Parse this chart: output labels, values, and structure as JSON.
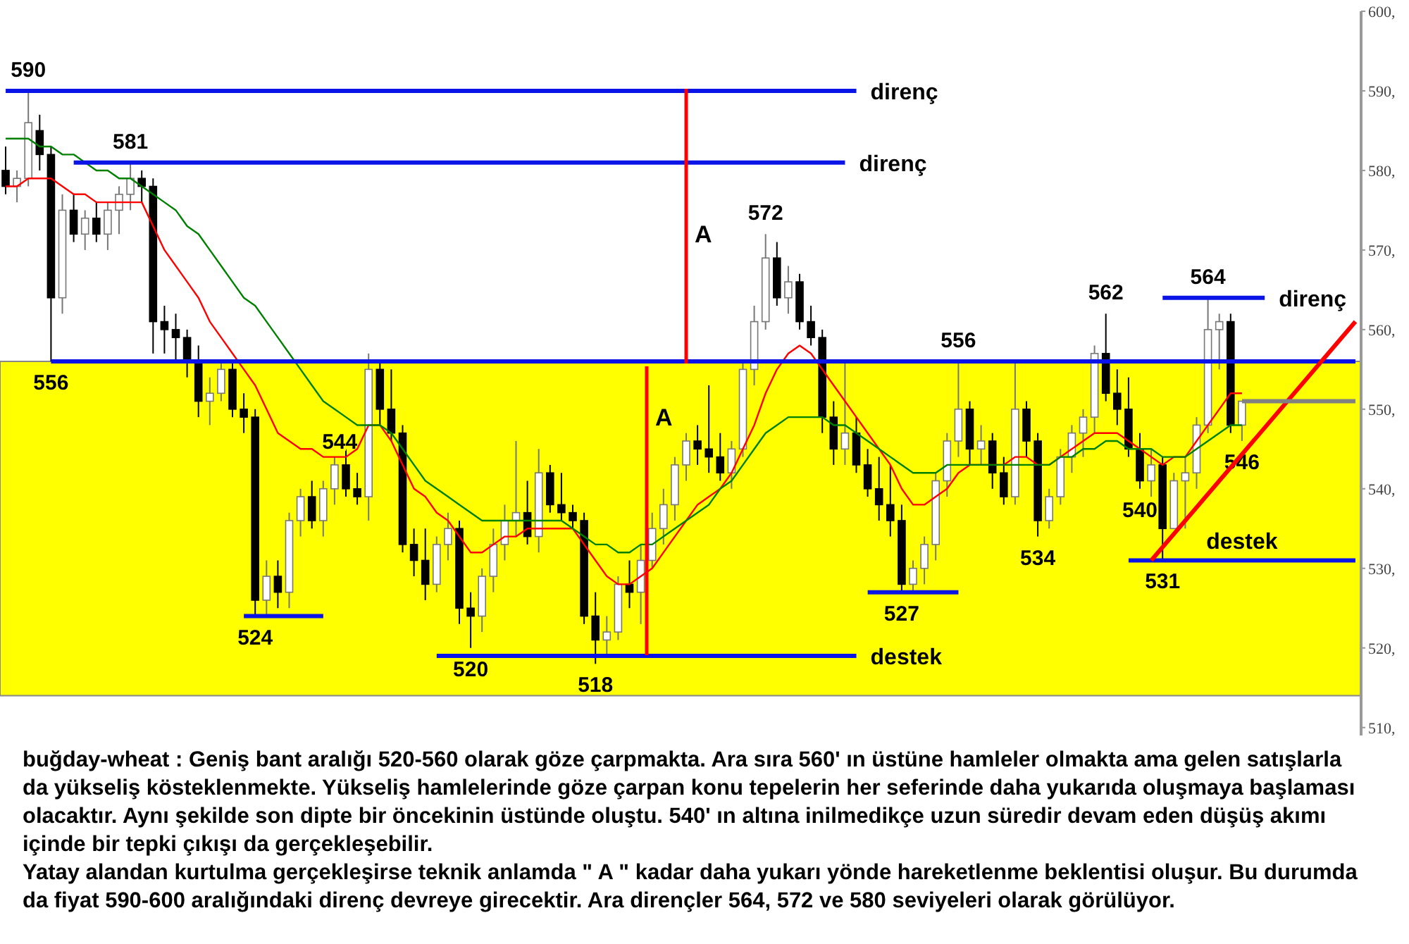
{
  "chart_data": {
    "type": "candlestick",
    "tick_labels": "y",
    "categories": [
      null,
      null,
      null,
      null,
      null,
      null,
      null,
      null,
      null,
      null,
      null,
      null,
      null,
      null,
      null,
      null,
      null,
      null,
      null,
      null,
      null,
      null,
      null,
      null,
      null,
      null,
      null,
      null,
      null,
      null,
      null,
      null,
      null,
      null,
      null,
      null,
      null,
      null,
      null,
      null,
      null,
      null,
      null,
      null,
      null,
      null,
      null,
      null,
      null,
      null,
      null,
      null,
      null,
      null,
      null,
      null,
      null,
      null,
      null,
      null,
      null,
      null,
      null,
      null,
      null,
      null,
      null,
      null,
      null,
      null,
      null,
      null,
      null,
      null,
      null,
      null,
      null,
      null,
      null,
      null,
      null,
      null,
      null,
      null,
      null,
      null,
      null,
      null,
      null,
      null,
      null,
      null,
      null,
      null,
      null,
      null,
      null,
      null,
      null,
      null,
      null,
      null,
      null,
      null,
      null,
      null,
      null,
      null,
      null,
      null,
      null,
      null,
      null,
      null,
      null,
      null,
      null,
      null,
      null,
      null
    ],
    "ohlc": [
      [
        580,
        583,
        577,
        578
      ],
      [
        578,
        580,
        576,
        579
      ],
      [
        579,
        590,
        578,
        586
      ],
      [
        585,
        587,
        580,
        582
      ],
      [
        582,
        583,
        556,
        564
      ],
      [
        564,
        577,
        562,
        575
      ],
      [
        575,
        577,
        571,
        572
      ],
      [
        572,
        575,
        570,
        574
      ],
      [
        574,
        576,
        571,
        572
      ],
      [
        572,
        576,
        570,
        575
      ],
      [
        575,
        578,
        572,
        577
      ],
      [
        577,
        581,
        575,
        579
      ],
      [
        579,
        580,
        576,
        578
      ],
      [
        578,
        579,
        557,
        561
      ],
      [
        561,
        563,
        557,
        560
      ],
      [
        560,
        562,
        556,
        559
      ],
      [
        559,
        560,
        554,
        556
      ],
      [
        556,
        558,
        549,
        551
      ],
      [
        551,
        554,
        548,
        552
      ],
      [
        552,
        556,
        551,
        555
      ],
      [
        555,
        556,
        549,
        550
      ],
      [
        550,
        552,
        547,
        549
      ],
      [
        549,
        550,
        524,
        526
      ],
      [
        526,
        531,
        524,
        529
      ],
      [
        529,
        531,
        525,
        527
      ],
      [
        527,
        537,
        525,
        536
      ],
      [
        536,
        540,
        534,
        539
      ],
      [
        539,
        541,
        535,
        536
      ],
      [
        536,
        541,
        534,
        540
      ],
      [
        540,
        544,
        538,
        543
      ],
      [
        543,
        545,
        539,
        540
      ],
      [
        540,
        542,
        538,
        539
      ],
      [
        539,
        557,
        536,
        555
      ],
      [
        555,
        556,
        548,
        550
      ],
      [
        550,
        555,
        546,
        547
      ],
      [
        547,
        548,
        532,
        533
      ],
      [
        533,
        535,
        529,
        531
      ],
      [
        531,
        535,
        526,
        528
      ],
      [
        528,
        534,
        527,
        533
      ],
      [
        533,
        537,
        531,
        535
      ],
      [
        535,
        536,
        523,
        525
      ],
      [
        525,
        527,
        520,
        524
      ],
      [
        524,
        530,
        522,
        529
      ],
      [
        529,
        535,
        527,
        533
      ],
      [
        533,
        538,
        531,
        536
      ],
      [
        536,
        546,
        534,
        537
      ],
      [
        537,
        541,
        533,
        534
      ],
      [
        534,
        545,
        532,
        542
      ],
      [
        542,
        543,
        537,
        538
      ],
      [
        538,
        542,
        536,
        537
      ],
      [
        537,
        538,
        535,
        536
      ],
      [
        536,
        537,
        523,
        524
      ],
      [
        524,
        527,
        518,
        521
      ],
      [
        521,
        524,
        519,
        522
      ],
      [
        522,
        529,
        521,
        528
      ],
      [
        528,
        531,
        525,
        527
      ],
      [
        527,
        533,
        523,
        531
      ],
      [
        531,
        537,
        530,
        535
      ],
      [
        535,
        540,
        533,
        538
      ],
      [
        538,
        544,
        536,
        543
      ],
      [
        543,
        547,
        541,
        546
      ],
      [
        546,
        548,
        543,
        545
      ],
      [
        545,
        553,
        542,
        544
      ],
      [
        544,
        547,
        541,
        542
      ],
      [
        542,
        546,
        540,
        545
      ],
      [
        545,
        556,
        544,
        555
      ],
      [
        555,
        563,
        553,
        561
      ],
      [
        561,
        572,
        560,
        569
      ],
      [
        569,
        571,
        563,
        564
      ],
      [
        564,
        568,
        562,
        566
      ],
      [
        566,
        567,
        560,
        561
      ],
      [
        561,
        563,
        558,
        559
      ],
      [
        559,
        560,
        547,
        549
      ],
      [
        549,
        551,
        543,
        545
      ],
      [
        545,
        556,
        543,
        547
      ],
      [
        547,
        549,
        542,
        543
      ],
      [
        543,
        545,
        539,
        540
      ],
      [
        540,
        544,
        536,
        538
      ],
      [
        538,
        543,
        534,
        536
      ],
      [
        536,
        538,
        527,
        528
      ],
      [
        528,
        531,
        527,
        530
      ],
      [
        530,
        534,
        528,
        533
      ],
      [
        533,
        542,
        531,
        541
      ],
      [
        541,
        547,
        539,
        546
      ],
      [
        546,
        556,
        544,
        550
      ],
      [
        550,
        551,
        543,
        545
      ],
      [
        545,
        548,
        543,
        546
      ],
      [
        546,
        547,
        540,
        542
      ],
      [
        542,
        544,
        538,
        539
      ],
      [
        539,
        556,
        538,
        550
      ],
      [
        550,
        551,
        544,
        546
      ],
      [
        546,
        547,
        534,
        536
      ],
      [
        536,
        540,
        535,
        539
      ],
      [
        539,
        545,
        538,
        544
      ],
      [
        544,
        548,
        542,
        547
      ],
      [
        547,
        550,
        544,
        549
      ],
      [
        549,
        558,
        547,
        557
      ],
      [
        557,
        562,
        551,
        552
      ],
      [
        552,
        555,
        548,
        550
      ],
      [
        550,
        554,
        544,
        545
      ],
      [
        545,
        547,
        540,
        541
      ],
      [
        541,
        545,
        539,
        543
      ],
      [
        543,
        544,
        531,
        535
      ],
      [
        535,
        542,
        535,
        541
      ],
      [
        541,
        544,
        535,
        542
      ],
      [
        542,
        549,
        540,
        548
      ],
      [
        548,
        564,
        547,
        560
      ],
      [
        560,
        562,
        555,
        561
      ],
      [
        561,
        562,
        547,
        548
      ],
      [
        548,
        551,
        546,
        551
      ],
      null,
      null,
      null,
      null,
      null,
      null,
      null,
      null,
      null,
      null
    ],
    "value_labels": [
      null,
      null,
      "590",
      null,
      "556",
      null,
      null,
      null,
      null,
      null,
      null,
      "581",
      null,
      null,
      null,
      null,
      null,
      null,
      null,
      null,
      null,
      null,
      "524",
      null,
      null,
      null,
      null,
      null,
      null,
      null,
      null,
      null,
      "544",
      null,
      null,
      null,
      null,
      null,
      null,
      null,
      null,
      "520",
      null,
      null,
      null,
      null,
      null,
      null,
      null,
      null,
      null,
      null,
      "518",
      null,
      null,
      null,
      null,
      null,
      null,
      null,
      null,
      null,
      null,
      null,
      null,
      null,
      null,
      "572",
      null,
      null,
      null,
      null,
      null,
      null,
      null,
      null,
      null,
      null,
      null,
      "527",
      null,
      null,
      null,
      null,
      "556",
      null,
      null,
      null,
      null,
      null,
      null,
      "534",
      null,
      null,
      null,
      null,
      null,
      "562",
      null,
      null,
      "540",
      null,
      "531",
      null,
      null,
      null,
      "564",
      null,
      null,
      "546",
      null,
      null,
      null,
      null,
      null,
      null,
      null,
      null,
      null,
      null
    ],
    "ylim": [
      509,
      600
    ],
    "yticks": [
      {
        "value": 510,
        "label": "510,"
      },
      {
        "value": 520,
        "label": "520,"
      },
      {
        "value": 530,
        "label": "530,"
      },
      {
        "value": 540,
        "label": "540,"
      },
      {
        "value": 550,
        "label": "550,"
      },
      {
        "value": 560,
        "label": "560,"
      },
      {
        "value": 570,
        "label": "570,"
      },
      {
        "value": 580,
        "label": "580,"
      },
      {
        "value": 590,
        "label": "590,"
      },
      {
        "value": 600,
        "label": "600,"
      }
    ],
    "bands": [
      {
        "axis": "y",
        "from": 514,
        "to": 556,
        "color": "#ffff00"
      }
    ],
    "series": [
      {
        "type": "line",
        "color": "#ff0000",
        "values": [
          578,
          578,
          579,
          579,
          579,
          578,
          577,
          577,
          576,
          576,
          576,
          576,
          576,
          573,
          570,
          568,
          566,
          564,
          561,
          559,
          557,
          555,
          553,
          550,
          547,
          546,
          545,
          545,
          544,
          544,
          544,
          545,
          548,
          548,
          546,
          543,
          540,
          539,
          537,
          536,
          534,
          532,
          532,
          533,
          534,
          534,
          535,
          535,
          535,
          535,
          535,
          533,
          531,
          529,
          528,
          528,
          529,
          530,
          532,
          534,
          536,
          538,
          539,
          540,
          542,
          545,
          548,
          552,
          555,
          557,
          558,
          557,
          555,
          553,
          551,
          549,
          547,
          545,
          543,
          540,
          538,
          538,
          539,
          540,
          542,
          543,
          543,
          543,
          543,
          544,
          544,
          543,
          543,
          544,
          545,
          546,
          547,
          547,
          547,
          546,
          545,
          544,
          543,
          544,
          544,
          546,
          548,
          550,
          552,
          552,
          null,
          null,
          null,
          null,
          null,
          null,
          null,
          null,
          null,
          null
        ]
      },
      {
        "type": "line",
        "color": "#008000",
        "values": [
          584,
          584,
          584,
          583,
          583,
          582,
          582,
          581,
          580,
          580,
          579,
          579,
          578,
          577,
          576,
          575,
          573,
          572,
          570,
          568,
          566,
          564,
          563,
          561,
          559,
          557,
          555,
          553,
          551,
          550,
          549,
          548,
          548,
          548,
          547,
          545,
          543,
          541,
          540,
          539,
          538,
          537,
          536,
          536,
          536,
          536,
          536,
          536,
          536,
          536,
          535,
          534,
          533,
          533,
          532,
          532,
          533,
          533,
          534,
          535,
          536,
          537,
          538,
          540,
          541,
          543,
          545,
          547,
          548,
          549,
          549,
          549,
          549,
          548,
          548,
          547,
          546,
          545,
          544,
          543,
          542,
          542,
          542,
          543,
          543,
          543,
          543,
          543,
          543,
          543,
          543,
          543,
          543,
          544,
          544,
          545,
          545,
          546,
          546,
          545,
          545,
          545,
          544,
          544,
          544,
          545,
          546,
          547,
          548,
          548,
          null,
          null,
          null,
          null,
          null,
          null,
          null,
          null,
          null,
          null
        ]
      },
      {
        "type": "line",
        "name": "direnç",
        "color": "#0a14e6",
        "values": [
          590,
          null,
          null,
          null,
          null,
          null,
          null,
          null,
          null,
          null,
          null,
          null,
          null,
          null,
          null,
          null,
          null,
          null,
          null,
          null,
          null,
          null,
          null,
          null,
          null,
          null,
          null,
          null,
          null,
          null,
          null,
          null,
          null,
          null,
          null,
          null,
          null,
          null,
          null,
          null,
          null,
          null,
          null,
          null,
          null,
          null,
          null,
          null,
          null,
          null,
          null,
          null,
          null,
          null,
          null,
          null,
          null,
          null,
          null,
          null,
          null,
          null,
          null,
          null,
          null,
          null,
          null,
          null,
          null,
          null,
          null,
          null,
          null,
          null,
          null,
          590,
          null,
          null,
          null,
          null,
          null,
          null,
          null,
          null,
          null,
          null,
          null,
          null,
          null,
          null,
          null,
          null,
          null,
          null,
          null,
          null,
          null,
          null,
          null,
          null,
          null,
          null,
          null,
          null,
          null,
          null,
          null,
          null,
          null,
          null,
          null,
          null,
          null,
          null,
          null,
          null,
          null,
          null,
          null,
          null
        ]
      },
      {
        "type": "line",
        "name": "direnç",
        "color": "#0a14e6",
        "values": [
          null,
          null,
          null,
          null,
          null,
          null,
          581,
          null,
          null,
          null,
          null,
          null,
          null,
          null,
          null,
          null,
          null,
          null,
          null,
          null,
          null,
          null,
          null,
          null,
          null,
          null,
          null,
          null,
          null,
          null,
          null,
          null,
          null,
          null,
          null,
          null,
          null,
          null,
          null,
          null,
          null,
          null,
          null,
          null,
          null,
          null,
          null,
          null,
          null,
          null,
          null,
          null,
          null,
          null,
          null,
          null,
          null,
          null,
          null,
          null,
          null,
          null,
          null,
          null,
          null,
          null,
          null,
          null,
          null,
          null,
          null,
          null,
          null,
          null,
          581,
          null,
          null,
          null,
          null,
          null,
          null,
          null,
          null,
          null,
          null,
          null,
          null,
          null,
          null,
          null,
          null,
          null,
          null,
          null,
          null,
          null,
          null,
          null,
          null,
          null,
          null,
          null,
          null,
          null,
          null,
          null,
          null,
          null,
          null,
          null,
          null,
          null,
          null,
          null,
          null,
          null,
          null,
          null,
          null,
          null
        ]
      },
      {
        "type": "line",
        "color": "#0a14e6",
        "values": [
          null,
          null,
          null,
          null,
          556,
          null,
          null,
          null,
          null,
          null,
          null,
          null,
          null,
          null,
          null,
          null,
          null,
          null,
          null,
          null,
          null,
          null,
          null,
          null,
          null,
          null,
          null,
          null,
          null,
          null,
          null,
          null,
          null,
          null,
          null,
          null,
          null,
          null,
          null,
          null,
          null,
          null,
          null,
          null,
          null,
          null,
          null,
          null,
          null,
          null,
          null,
          null,
          null,
          null,
          null,
          null,
          null,
          null,
          null,
          null,
          null,
          null,
          null,
          null,
          null,
          null,
          null,
          null,
          null,
          null,
          null,
          null,
          null,
          null,
          null,
          null,
          null,
          null,
          null,
          null,
          null,
          null,
          null,
          null,
          null,
          null,
          null,
          null,
          null,
          null,
          null,
          null,
          null,
          null,
          null,
          null,
          null,
          null,
          null,
          null,
          null,
          null,
          null,
          null,
          null,
          null,
          null,
          null,
          null,
          null,
          null,
          null,
          null,
          null,
          null,
          null,
          null,
          null,
          null,
          556
        ]
      },
      {
        "type": "line",
        "color": "#0a14e6",
        "values": [
          null,
          null,
          null,
          null,
          null,
          null,
          null,
          null,
          null,
          null,
          null,
          null,
          null,
          null,
          null,
          null,
          null,
          null,
          null,
          null,
          null,
          524,
          null,
          null,
          null,
          null,
          null,
          null,
          524,
          null,
          null,
          null,
          null,
          null,
          null,
          null,
          null,
          null,
          null,
          null,
          null,
          null,
          null,
          null,
          null,
          null,
          null,
          null,
          null,
          null,
          null,
          null,
          null,
          null,
          null,
          null,
          null,
          null,
          null,
          null,
          null,
          null,
          null,
          null,
          null,
          null,
          null,
          null,
          null,
          null,
          null,
          null,
          null,
          null,
          null,
          null,
          null,
          null,
          null,
          null,
          null,
          null,
          null,
          null,
          null,
          null,
          null,
          null,
          null,
          null,
          null,
          null,
          null,
          null,
          null,
          null,
          null,
          null,
          null,
          null,
          null,
          null,
          null,
          null,
          null,
          null,
          null,
          null,
          null,
          null,
          null,
          null,
          null,
          null,
          null,
          null,
          null,
          null,
          null,
          null
        ]
      },
      {
        "type": "line",
        "name": "destek",
        "color": "#0a14e6",
        "values": [
          null,
          null,
          null,
          null,
          null,
          null,
          null,
          null,
          null,
          null,
          null,
          null,
          null,
          null,
          null,
          null,
          null,
          null,
          null,
          null,
          null,
          null,
          null,
          null,
          null,
          null,
          null,
          null,
          null,
          null,
          null,
          null,
          null,
          null,
          null,
          null,
          null,
          null,
          519,
          null,
          null,
          null,
          null,
          null,
          null,
          null,
          null,
          null,
          null,
          null,
          null,
          null,
          null,
          null,
          null,
          null,
          null,
          null,
          null,
          null,
          null,
          null,
          null,
          null,
          null,
          null,
          null,
          null,
          null,
          null,
          null,
          null,
          null,
          null,
          null,
          519,
          null,
          null,
          null,
          null,
          null,
          null,
          null,
          null,
          null,
          null,
          null,
          null,
          null,
          null,
          null,
          null,
          null,
          null,
          null,
          null,
          null,
          null,
          null,
          null,
          null,
          null,
          null,
          null,
          null,
          null,
          null,
          null,
          null,
          null,
          null,
          null,
          null,
          null,
          null,
          null,
          null,
          null,
          null,
          null
        ]
      },
      {
        "type": "line",
        "color": "#0a14e6",
        "values": [
          null,
          null,
          null,
          null,
          null,
          null,
          null,
          null,
          null,
          null,
          null,
          null,
          null,
          null,
          null,
          null,
          null,
          null,
          null,
          null,
          null,
          null,
          null,
          null,
          null,
          null,
          null,
          null,
          null,
          null,
          null,
          null,
          null,
          null,
          null,
          null,
          null,
          null,
          null,
          null,
          null,
          null,
          null,
          null,
          null,
          null,
          null,
          null,
          null,
          null,
          null,
          null,
          null,
          null,
          null,
          null,
          null,
          null,
          null,
          null,
          null,
          null,
          null,
          null,
          null,
          null,
          null,
          null,
          null,
          null,
          null,
          null,
          null,
          null,
          null,
          null,
          527,
          null,
          null,
          null,
          null,
          null,
          null,
          null,
          527,
          null,
          null,
          null,
          null,
          null,
          null,
          null,
          null,
          null,
          null,
          null,
          null,
          null,
          null,
          null,
          null,
          null,
          null,
          null,
          null,
          null,
          null,
          null,
          null,
          null,
          null,
          null,
          null,
          null,
          null,
          null,
          null,
          null,
          null,
          null
        ]
      },
      {
        "type": "line",
        "name": "destek",
        "color": "#0a14e6",
        "values": [
          null,
          null,
          null,
          null,
          null,
          null,
          null,
          null,
          null,
          null,
          null,
          null,
          null,
          null,
          null,
          null,
          null,
          null,
          null,
          null,
          null,
          null,
          null,
          null,
          null,
          null,
          null,
          null,
          null,
          null,
          null,
          null,
          null,
          null,
          null,
          null,
          null,
          null,
          null,
          null,
          null,
          null,
          null,
          null,
          null,
          null,
          null,
          null,
          null,
          null,
          null,
          null,
          null,
          null,
          null,
          null,
          null,
          null,
          null,
          null,
          null,
          null,
          null,
          null,
          null,
          null,
          null,
          null,
          null,
          null,
          null,
          null,
          null,
          null,
          null,
          null,
          null,
          null,
          null,
          null,
          null,
          null,
          null,
          null,
          null,
          null,
          null,
          null,
          null,
          null,
          null,
          null,
          null,
          null,
          null,
          null,
          null,
          null,
          null,
          531,
          null,
          null,
          null,
          null,
          null,
          null,
          null,
          null,
          null,
          null,
          null,
          null,
          null,
          null,
          null,
          null,
          null,
          null,
          null,
          531
        ]
      },
      {
        "type": "line",
        "name": "direnç",
        "color": "#0a14e6",
        "values": [
          null,
          null,
          null,
          null,
          null,
          null,
          null,
          null,
          null,
          null,
          null,
          null,
          null,
          null,
          null,
          null,
          null,
          null,
          null,
          null,
          null,
          null,
          null,
          null,
          null,
          null,
          null,
          null,
          null,
          null,
          null,
          null,
          null,
          null,
          null,
          null,
          null,
          null,
          null,
          null,
          null,
          null,
          null,
          null,
          null,
          null,
          null,
          null,
          null,
          null,
          null,
          null,
          null,
          null,
          null,
          null,
          null,
          null,
          null,
          null,
          null,
          null,
          null,
          null,
          null,
          null,
          null,
          null,
          null,
          null,
          null,
          null,
          null,
          null,
          null,
          null,
          null,
          null,
          null,
          null,
          null,
          null,
          null,
          null,
          null,
          null,
          null,
          null,
          null,
          null,
          null,
          null,
          null,
          null,
          null,
          null,
          null,
          null,
          null,
          null,
          null,
          null,
          564,
          null,
          null,
          null,
          null,
          null,
          null,
          null,
          null,
          564,
          null,
          null,
          null,
          null,
          null,
          null,
          null,
          null
        ]
      },
      {
        "type": "line",
        "color": "#ff0000",
        "values": [
          null,
          null,
          null,
          null,
          null,
          null,
          null,
          null,
          null,
          null,
          null,
          null,
          null,
          null,
          null,
          null,
          null,
          null,
          null,
          null,
          null,
          null,
          null,
          null,
          null,
          null,
          null,
          null,
          null,
          null,
          null,
          null,
          null,
          null,
          null,
          null,
          null,
          null,
          null,
          null,
          null,
          null,
          null,
          null,
          null,
          null,
          null,
          null,
          null,
          null,
          null,
          null,
          null,
          null,
          null,
          null,
          null,
          null,
          null,
          null,
          null,
          null,
          null,
          null,
          null,
          null,
          null,
          null,
          null,
          null,
          null,
          null,
          null,
          null,
          null,
          null,
          null,
          null,
          null,
          null,
          null,
          null,
          null,
          null,
          null,
          null,
          null,
          null,
          null,
          null,
          null,
          null,
          null,
          null,
          null,
          null,
          null,
          null,
          null,
          null,
          null,
          531,
          null,
          null,
          null,
          null,
          null,
          null,
          null,
          null,
          null,
          null,
          null,
          null,
          null,
          null,
          null,
          null,
          null,
          561
        ]
      },
      {
        "type": "line",
        "color": "#808080",
        "values": [
          null,
          null,
          null,
          null,
          null,
          null,
          null,
          null,
          null,
          null,
          null,
          null,
          null,
          null,
          null,
          null,
          null,
          null,
          null,
          null,
          null,
          null,
          null,
          null,
          null,
          null,
          null,
          null,
          null,
          null,
          null,
          null,
          null,
          null,
          null,
          null,
          null,
          null,
          null,
          null,
          null,
          null,
          null,
          null,
          null,
          null,
          null,
          null,
          null,
          null,
          null,
          null,
          null,
          null,
          null,
          null,
          null,
          null,
          null,
          null,
          null,
          null,
          null,
          null,
          null,
          null,
          null,
          null,
          null,
          null,
          null,
          null,
          null,
          null,
          null,
          null,
          null,
          null,
          null,
          null,
          null,
          null,
          null,
          null,
          null,
          null,
          null,
          null,
          null,
          null,
          null,
          null,
          null,
          null,
          null,
          null,
          null,
          null,
          null,
          null,
          null,
          null,
          null,
          null,
          null,
          null,
          null,
          null,
          null,
          551,
          null,
          null,
          null,
          null,
          null,
          null,
          null,
          null,
          null,
          551
        ]
      }
    ],
    "annotations": [
      "A",
      "A",
      "buğday-wheat : Geniş bant aralığı 520-560 olarak göze çarpmakta. Ara sıra 560' ın üstüne hamleler olmakta ama gelen satışlarla da yükseliş kösteklenmekte. Yükseliş hamlelerinde göze çarpan konu tepelerin her seferinde daha yukarıda oluşmaya başlaması olacaktır. Aynı şekilde son dipte bir öncekinin üstünde oluştu. 540' ın altına inilmedikçe uzun süredir devam eden düşüş akımı içinde bir tepki çıkışı da gerçekleşebilir.",
      "Yatay alandan kurtulma gerçekleşirse teknik anlamda \" A \" kadar daha yukarı yönde hareketlenme beklentisi oluşur. Bu durumda da fiyat 590-600 aralığındaki direnç devreye girecektir. Ara dirençler 564, 572 ve 580 seviyeleri olarak görülüyor."
    ]
  }
}
